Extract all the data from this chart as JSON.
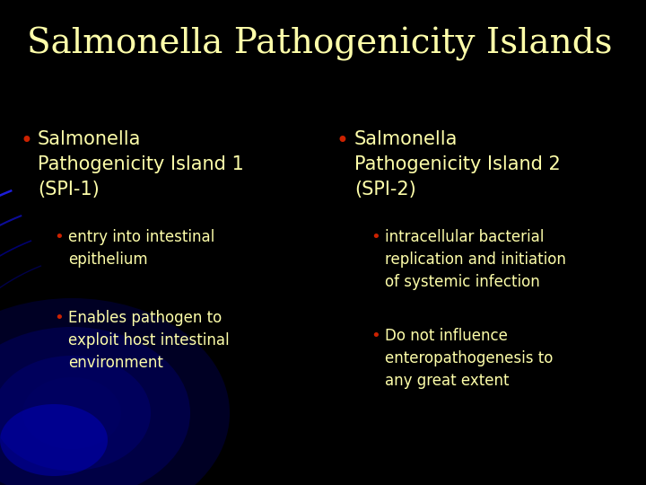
{
  "title": "Salmonella Pathogenicity Islands",
  "title_color": "#FFFFAA",
  "title_fontsize": 28,
  "background_color": "#000000",
  "text_color": "#FFFFAA",
  "bullet_fontsize": 15,
  "sub_bullet_fontsize": 12,
  "red_bullet": "#CC2200",
  "left_col": {
    "main_bullet": "Salmonella\nPathogenicity Island 1\n(SPI-1)",
    "sub_bullets": [
      "entry into intestinal\nepithelium",
      "Enables pathogen to\nexploit host intestinal\nenvironment"
    ]
  },
  "right_col": {
    "main_bullet": "Salmonella\nPathogenicity Island 2\n(SPI-2)",
    "sub_bullets": [
      "intracellular bacterial\nreplication and initiation\nof systemic infection",
      "Do not influence\nenteropathogenesis to\nany great extent"
    ]
  }
}
